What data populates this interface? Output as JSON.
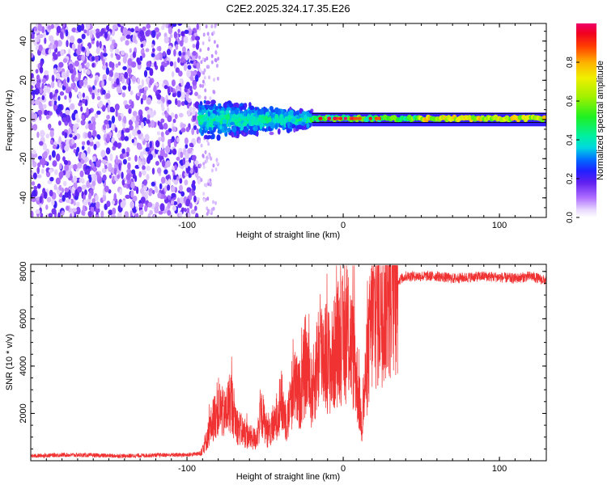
{
  "chart_data": [
    {
      "type": "heatmap",
      "title": "C2E2.2025.324.17.35.E26",
      "xlabel": "Height of straight line (km)",
      "ylabel": "Frequency (Hz)",
      "xlim": [
        -200,
        130
      ],
      "ylim": [
        -50,
        49
      ],
      "xticks": [
        -100,
        0,
        100
      ],
      "xtick_labels": [
        "-100",
        "0",
        "100"
      ],
      "yticks": [
        -40,
        -20,
        0,
        20,
        40
      ],
      "ytick_labels": [
        "-40",
        "-20",
        "0",
        "20",
        "40"
      ],
      "regions": [
        {
          "name": "broadband noise",
          "x_range": [
            -200,
            -92
          ],
          "freq_range": [
            -50,
            49
          ],
          "amplitude": "0.05-0.25"
        },
        {
          "name": "signal onset",
          "x_range": [
            -92,
            -20
          ],
          "freq_range": [
            -12,
            12
          ],
          "amplitude": "0.1-0.5"
        },
        {
          "name": "narrow carrier",
          "x_range": [
            -20,
            130
          ],
          "freq_range": [
            -2,
            2
          ],
          "amplitude": "0.4-1.0"
        }
      ],
      "colorbar": {
        "label": "Normalized spectral amplitude",
        "range": [
          0,
          1
        ],
        "ticks": [
          0.0,
          0.2,
          0.4,
          0.6,
          0.8
        ],
        "tick_labels": [
          "0.0",
          "0.2",
          "0.4",
          "0.6",
          "0.8"
        ]
      }
    },
    {
      "type": "line",
      "title": "",
      "xlabel": "Height of straight line (km)",
      "ylabel": "SNR (10 * v/v)",
      "xlim": [
        -200,
        130
      ],
      "ylim": [
        0,
        8300
      ],
      "xticks": [
        -100,
        0,
        100
      ],
      "xtick_labels": [
        "-100",
        "0",
        "100"
      ],
      "yticks": [
        2000,
        4000,
        6000,
        8000
      ],
      "ytick_labels": [
        "2000",
        "4000",
        "6000",
        "8000"
      ],
      "color": "#f03232",
      "series": [
        {
          "name": "SNR",
          "x": [
            -200,
            -180,
            -160,
            -140,
            -120,
            -100,
            -92,
            -88,
            -84,
            -80,
            -76,
            -72,
            -68,
            -64,
            -60,
            -56,
            -52,
            -48,
            -44,
            -40,
            -36,
            -32,
            -28,
            -24,
            -20,
            -16,
            -12,
            -8,
            -4,
            0,
            4,
            8,
            12,
            14,
            18,
            22,
            26,
            30,
            35,
            40,
            50,
            60,
            70,
            80,
            90,
            100,
            110,
            120,
            130
          ],
          "y": [
            200,
            250,
            230,
            200,
            240,
            250,
            300,
            800,
            1600,
            2300,
            1900,
            2600,
            1500,
            1200,
            1000,
            900,
            2000,
            1100,
            1500,
            2600,
            1600,
            3200,
            2700,
            4100,
            2800,
            4400,
            4700,
            4000,
            4900,
            5100,
            5300,
            3900,
            1500,
            3200,
            5800,
            6500,
            7000,
            7300,
            7600,
            7800,
            7800,
            7800,
            7700,
            7750,
            7800,
            7750,
            7700,
            7800,
            7600
          ]
        }
      ]
    }
  ]
}
